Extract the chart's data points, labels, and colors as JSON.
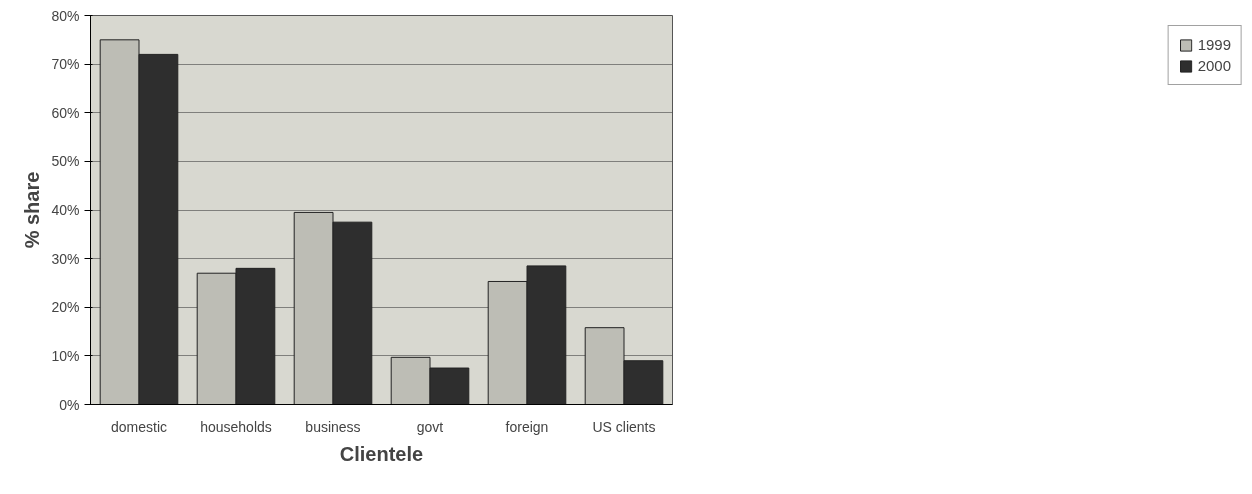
{
  "chart_data": {
    "type": "bar",
    "xlabel": "Clientele",
    "ylabel": "% share",
    "categories": [
      "domestic",
      "households",
      "business",
      "govt",
      "foreign",
      "US clients"
    ],
    "series": [
      {
        "name": "1999",
        "color": "#bdbdb5",
        "values": [
          75,
          27,
          39.5,
          9.7,
          25.3,
          15.8
        ]
      },
      {
        "name": "2000",
        "color": "#2e2e2e",
        "values": [
          72,
          28,
          37.5,
          7.5,
          28.5,
          9
        ]
      }
    ],
    "ylim": [
      0,
      80
    ],
    "yticks": [
      {
        "value": 0,
        "label": "0%"
      },
      {
        "value": 10,
        "label": "10%"
      },
      {
        "value": 20,
        "label": "20%"
      },
      {
        "value": 30,
        "label": "30%"
      },
      {
        "value": 40,
        "label": "40%"
      },
      {
        "value": 50,
        "label": "50%"
      },
      {
        "value": 60,
        "label": "60%"
      },
      {
        "value": 70,
        "label": "70%"
      },
      {
        "value": 80,
        "label": "80%"
      }
    ],
    "grid": "y",
    "legend": "right"
  }
}
